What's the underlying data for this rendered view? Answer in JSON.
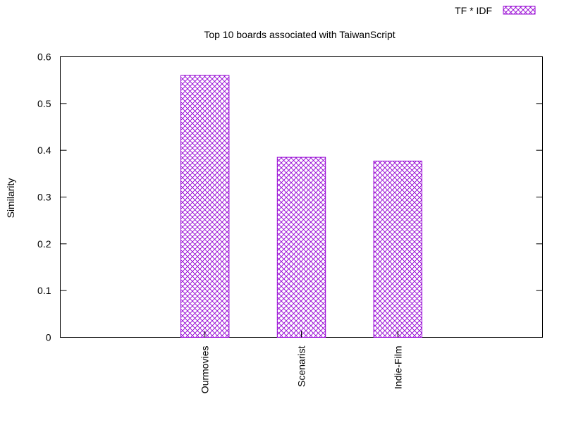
{
  "chart_data": {
    "type": "bar",
    "title": "Top 10 boards associated with TaiwanScript",
    "xlabel": "",
    "ylabel": "Similarity",
    "categories": [
      "Ourmovies",
      "Scenarist",
      "Indie-Film"
    ],
    "series": [
      {
        "name": "TF * IDF",
        "values": [
          0.56,
          0.385,
          0.377
        ]
      }
    ],
    "ylim": [
      0,
      0.6
    ],
    "yticks": [
      "0",
      "0.1",
      "0.2",
      "0.3",
      "0.4",
      "0.5",
      "0.6"
    ],
    "grid": false,
    "legend_position": "top-right",
    "colors": {
      "bar_stroke": "#9400d3",
      "axis": "#000000"
    }
  }
}
